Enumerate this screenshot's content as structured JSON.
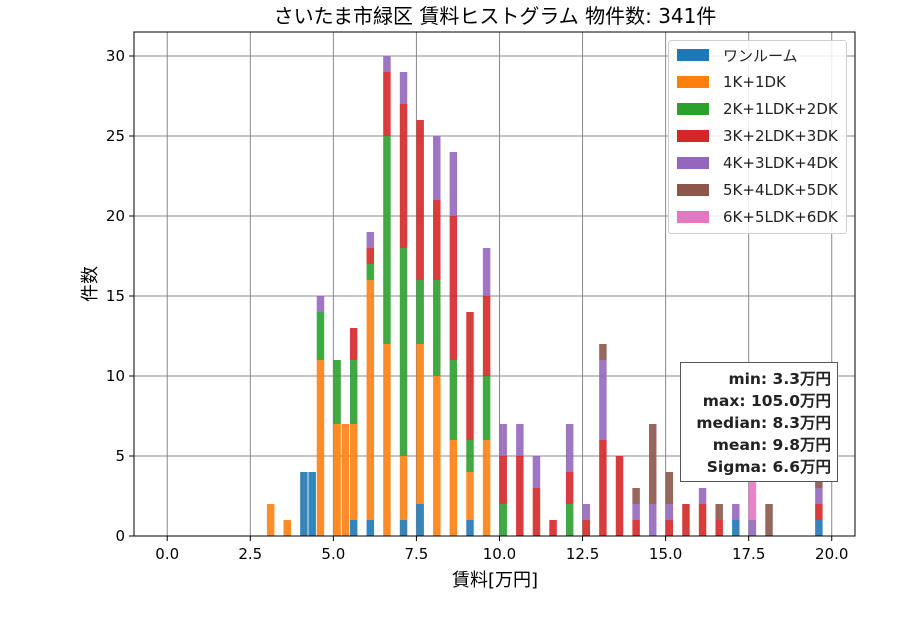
{
  "chart_data": {
    "type": "bar",
    "stacked": true,
    "title": "さいたま市緑区 賃料ヒストグラム 物件数: 341件",
    "xlabel": "賃料[万円]",
    "ylabel": "件数",
    "xlim": [
      -1.0,
      20.7
    ],
    "ylim": [
      0,
      31.5
    ],
    "xticks": [
      0.0,
      2.5,
      5.0,
      7.5,
      10.0,
      12.5,
      15.0,
      17.5,
      20.0
    ],
    "xtick_labels": [
      "0.0",
      "2.5",
      "5.0",
      "7.5",
      "10.0",
      "12.5",
      "15.0",
      "17.5",
      "20.0"
    ],
    "yticks": [
      0,
      5,
      10,
      15,
      20,
      25,
      30
    ],
    "ytick_labels": [
      "0",
      "5",
      "10",
      "15",
      "20",
      "25",
      "30"
    ],
    "grid": true,
    "legend_position": "top-right",
    "bin_width": 0.25,
    "x": [
      3.0,
      3.5,
      4.0,
      4.25,
      4.5,
      5.0,
      5.25,
      5.5,
      6.0,
      6.5,
      7.0,
      7.5,
      8.0,
      8.5,
      9.0,
      9.5,
      10.0,
      10.5,
      11.0,
      11.5,
      12.0,
      12.5,
      13.0,
      13.5,
      14.0,
      14.5,
      15.0,
      15.5,
      16.0,
      16.5,
      17.0,
      17.5,
      18.0,
      19.5
    ],
    "series": [
      {
        "name": "ワンルーム",
        "color": "#1f77b4",
        "values": [
          0,
          0,
          4,
          4,
          0,
          0,
          0,
          1,
          1,
          0,
          1,
          2,
          0,
          0,
          1,
          0,
          0,
          0,
          0,
          0,
          0,
          0,
          0,
          0,
          0,
          0,
          0,
          0,
          0,
          0,
          1,
          0,
          0,
          1
        ]
      },
      {
        "name": "1K+1DK",
        "color": "#ff7f0e",
        "values": [
          2,
          1,
          0,
          0,
          11,
          7,
          7,
          6,
          15,
          12,
          4,
          10,
          10,
          6,
          3,
          6,
          0,
          0,
          0,
          0,
          0,
          0,
          0,
          0,
          0,
          0,
          0,
          0,
          0,
          0,
          0,
          0,
          0,
          0
        ]
      },
      {
        "name": "2K+1LDK+2DK",
        "color": "#2ca02c",
        "values": [
          0,
          0,
          0,
          0,
          3,
          4,
          0,
          4,
          1,
          13,
          13,
          4,
          6,
          5,
          2,
          4,
          2,
          0,
          0,
          0,
          2,
          0,
          0,
          0,
          0,
          0,
          0,
          0,
          0,
          0,
          0,
          0,
          0,
          0
        ]
      },
      {
        "name": "3K+2LDK+3DK",
        "color": "#d62728",
        "values": [
          0,
          0,
          0,
          0,
          0,
          0,
          0,
          2,
          1,
          4,
          9,
          10,
          5,
          9,
          8,
          5,
          3,
          5,
          3,
          1,
          2,
          1,
          6,
          5,
          1,
          0,
          1,
          2,
          2,
          1,
          0,
          0,
          0,
          1
        ]
      },
      {
        "name": "4K+3LDK+4DK",
        "color": "#9467bd",
        "values": [
          0,
          0,
          0,
          0,
          1,
          0,
          0,
          0,
          1,
          1,
          2,
          0,
          4,
          4,
          0,
          3,
          2,
          2,
          2,
          0,
          3,
          1,
          5,
          0,
          1,
          2,
          1,
          0,
          1,
          0,
          1,
          1,
          0,
          1
        ]
      },
      {
        "name": "5K+4LDK+5DK",
        "color": "#8c564b",
        "values": [
          0,
          0,
          0,
          0,
          0,
          0,
          0,
          0,
          0,
          0,
          0,
          0,
          0,
          0,
          0,
          0,
          0,
          0,
          0,
          0,
          0,
          0,
          1,
          0,
          1,
          5,
          2,
          0,
          0,
          1,
          0,
          0,
          2,
          2
        ]
      },
      {
        "name": "6K+5LDK+6DK",
        "color": "#e377c2",
        "values": [
          0,
          0,
          0,
          0,
          0,
          0,
          0,
          0,
          0,
          0,
          0,
          0,
          0,
          0,
          0,
          0,
          0,
          0,
          0,
          0,
          0,
          0,
          0,
          0,
          0,
          0,
          0,
          0,
          0,
          0,
          0,
          3,
          0,
          0
        ]
      }
    ],
    "stats": [
      "min: 3.3万円",
      "max: 105.0万円",
      "median: 8.3万円",
      "mean: 9.8万円",
      "Sigma: 6.6万円"
    ]
  }
}
